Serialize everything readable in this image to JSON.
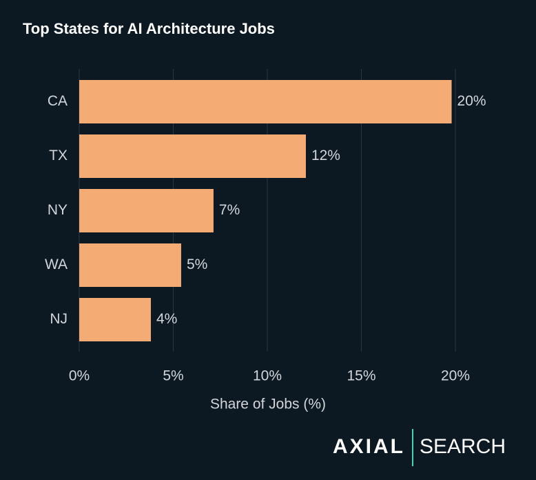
{
  "chart_data": {
    "type": "barh",
    "title": "Top States for AI Architecture Jobs",
    "categories": [
      "CA",
      "TX",
      "NY",
      "WA",
      "NJ"
    ],
    "values": [
      19.8,
      12.05,
      7.14,
      5.42,
      3.81
    ],
    "value_labels": [
      "20%",
      "12%",
      "7%",
      "5%",
      "4%"
    ],
    "color": "#f4ab74",
    "xlabel": "Share of Jobs (%)",
    "xlim": [
      0,
      20
    ],
    "xticks": [
      {
        "value": 0,
        "label": "0%"
      },
      {
        "value": 5,
        "label": "5%"
      },
      {
        "value": 10,
        "label": "10%"
      },
      {
        "value": 15,
        "label": "15%"
      },
      {
        "value": 20,
        "label": "20%"
      }
    ],
    "grid": true
  },
  "brand": {
    "name": "AXIAL",
    "product": "SEARCH"
  }
}
